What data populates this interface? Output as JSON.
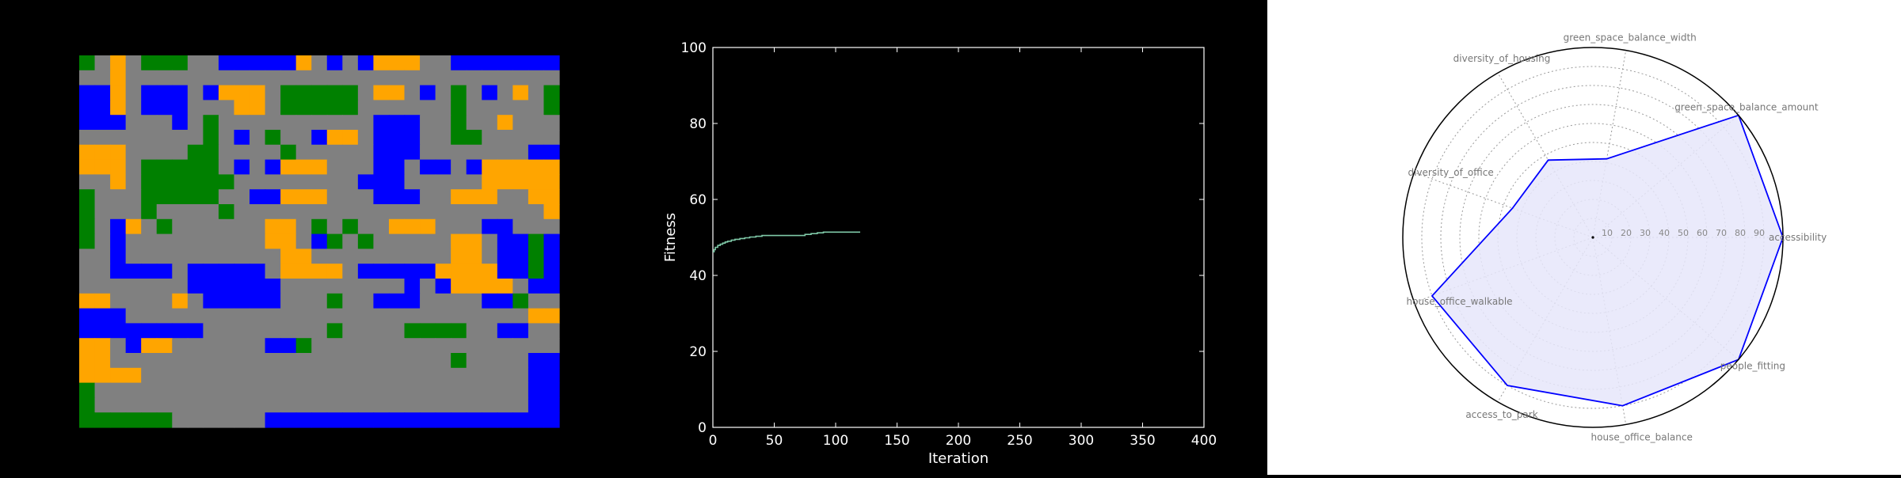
{
  "colors": {
    "road": "#808080",
    "housing": "#ffa500",
    "office": "#0000ff",
    "green": "#008000",
    "fitness_line": "#7fc9a8",
    "radar_line": "#0000ff",
    "radar_fill": "#e6e6fa"
  },
  "city_grid": {
    "cell_codes": [
      "G",
      "O",
      "H",
      "R"
    ],
    "rows": [
      "GRHRGGGRROOOOOHROROHHHRROOOOOOO",
      "RRHRRRRRRRRRRRRRRRRRRRRRRRRRRRR",
      "OOHROOOROHHHRGGGGGRHHRORGRORHRG",
      "OOHROOORRRHHRGGGGGRRRRRRGRRRRRG",
      "OOORRRORGRRRRRRRRRROOORRGRRHRRR",
      "RRRRRRRRGRORGRROHHROOORRGGRRRRR",
      "HHHRRRRGGRRRRGRRRRROOORRRRRRROO",
      "HHHRGGGGGROROHHHRRROOROOROHHHHH",
      "RRHRGGGGGGRRRRRRRROOORRRRRHHHHH",
      "GRRRGGGGGRROOHHHRRROOORRHHHRRHH",
      "GRRRGRRRRGRRRRRRRRRRRRRRRRRRRRH",
      "GROHRGRRRRRRHHRGRGRRHHHRRROORRR",
      "GRORRRRRRRRRHHROGRGRRRRRHHROOGO",
      "RRORRRRRRRRRRHHRRRRRRRRRHHROOGO",
      "RROOOOROOOOORHHHHROOOOOHHHHOOGO",
      "RRRRRRROOOOOORRRRRRRROROHHHHROO",
      "HHRRRRHROOOOORRRGRROOORRRROOGRR",
      "OOORRRRRRRRRRRRRRRRRRRRRRRRRRHH",
      "OOOOOOOORRRRRRRRGRRRRGGGGRROORR",
      "HHROHHRRRRRROOGRRRRRRRRRRRRRRRR",
      "HHRRRRRRRRRRRRRRRRRRRRRRGRRRROO",
      "HHHHRRRRRRRRRRRRRRRRRRRRRRRRROO",
      "GRRRRRRRRRRRRRRRRRRRRRRRRRRRROO",
      "GRRRRRRRRRRRRRRRRRRRRRRRRRRRROO",
      "GGGGGGRRRRRROOOOOOOOOOOOOOOOOOO"
    ]
  },
  "chart_data": [
    {
      "type": "line",
      "xlabel": "Iteration",
      "ylabel": "Fitness",
      "xlim": [
        0,
        400
      ],
      "ylim": [
        0,
        100
      ],
      "xticks": [
        0,
        50,
        100,
        150,
        200,
        250,
        300,
        350,
        400
      ],
      "yticks": [
        0,
        20,
        40,
        60,
        80,
        100
      ],
      "grid": false,
      "series": [
        {
          "x": [
            0,
            1,
            2,
            4,
            6,
            8,
            10,
            12,
            15,
            18,
            22,
            26,
            30,
            35,
            40,
            50,
            60,
            70,
            75,
            80,
            85,
            90,
            100,
            110,
            120
          ],
          "y": [
            46.2,
            46.8,
            47.4,
            47.9,
            48.2,
            48.5,
            48.8,
            49.0,
            49.3,
            49.5,
            49.7,
            49.9,
            50.1,
            50.3,
            50.5,
            50.5,
            50.5,
            50.5,
            50.8,
            51.0,
            51.2,
            51.4,
            51.4,
            51.4,
            51.4
          ]
        }
      ]
    },
    {
      "type": "radar",
      "categories": [
        "accessibility",
        "green_space_balance_amount",
        "green_space_balance_width",
        "diversity_of_housing",
        "diversity_of_office",
        "house_office_walkable",
        "access_to_park",
        "house_office_balance",
        "people_fitting"
      ],
      "values": [
        100,
        100,
        42,
        47,
        45,
        90,
        90,
        90,
        100
      ],
      "rticks": [
        10,
        20,
        30,
        40,
        50,
        60,
        70,
        80,
        90
      ],
      "rlim": [
        0,
        100
      ],
      "grid": true
    }
  ]
}
